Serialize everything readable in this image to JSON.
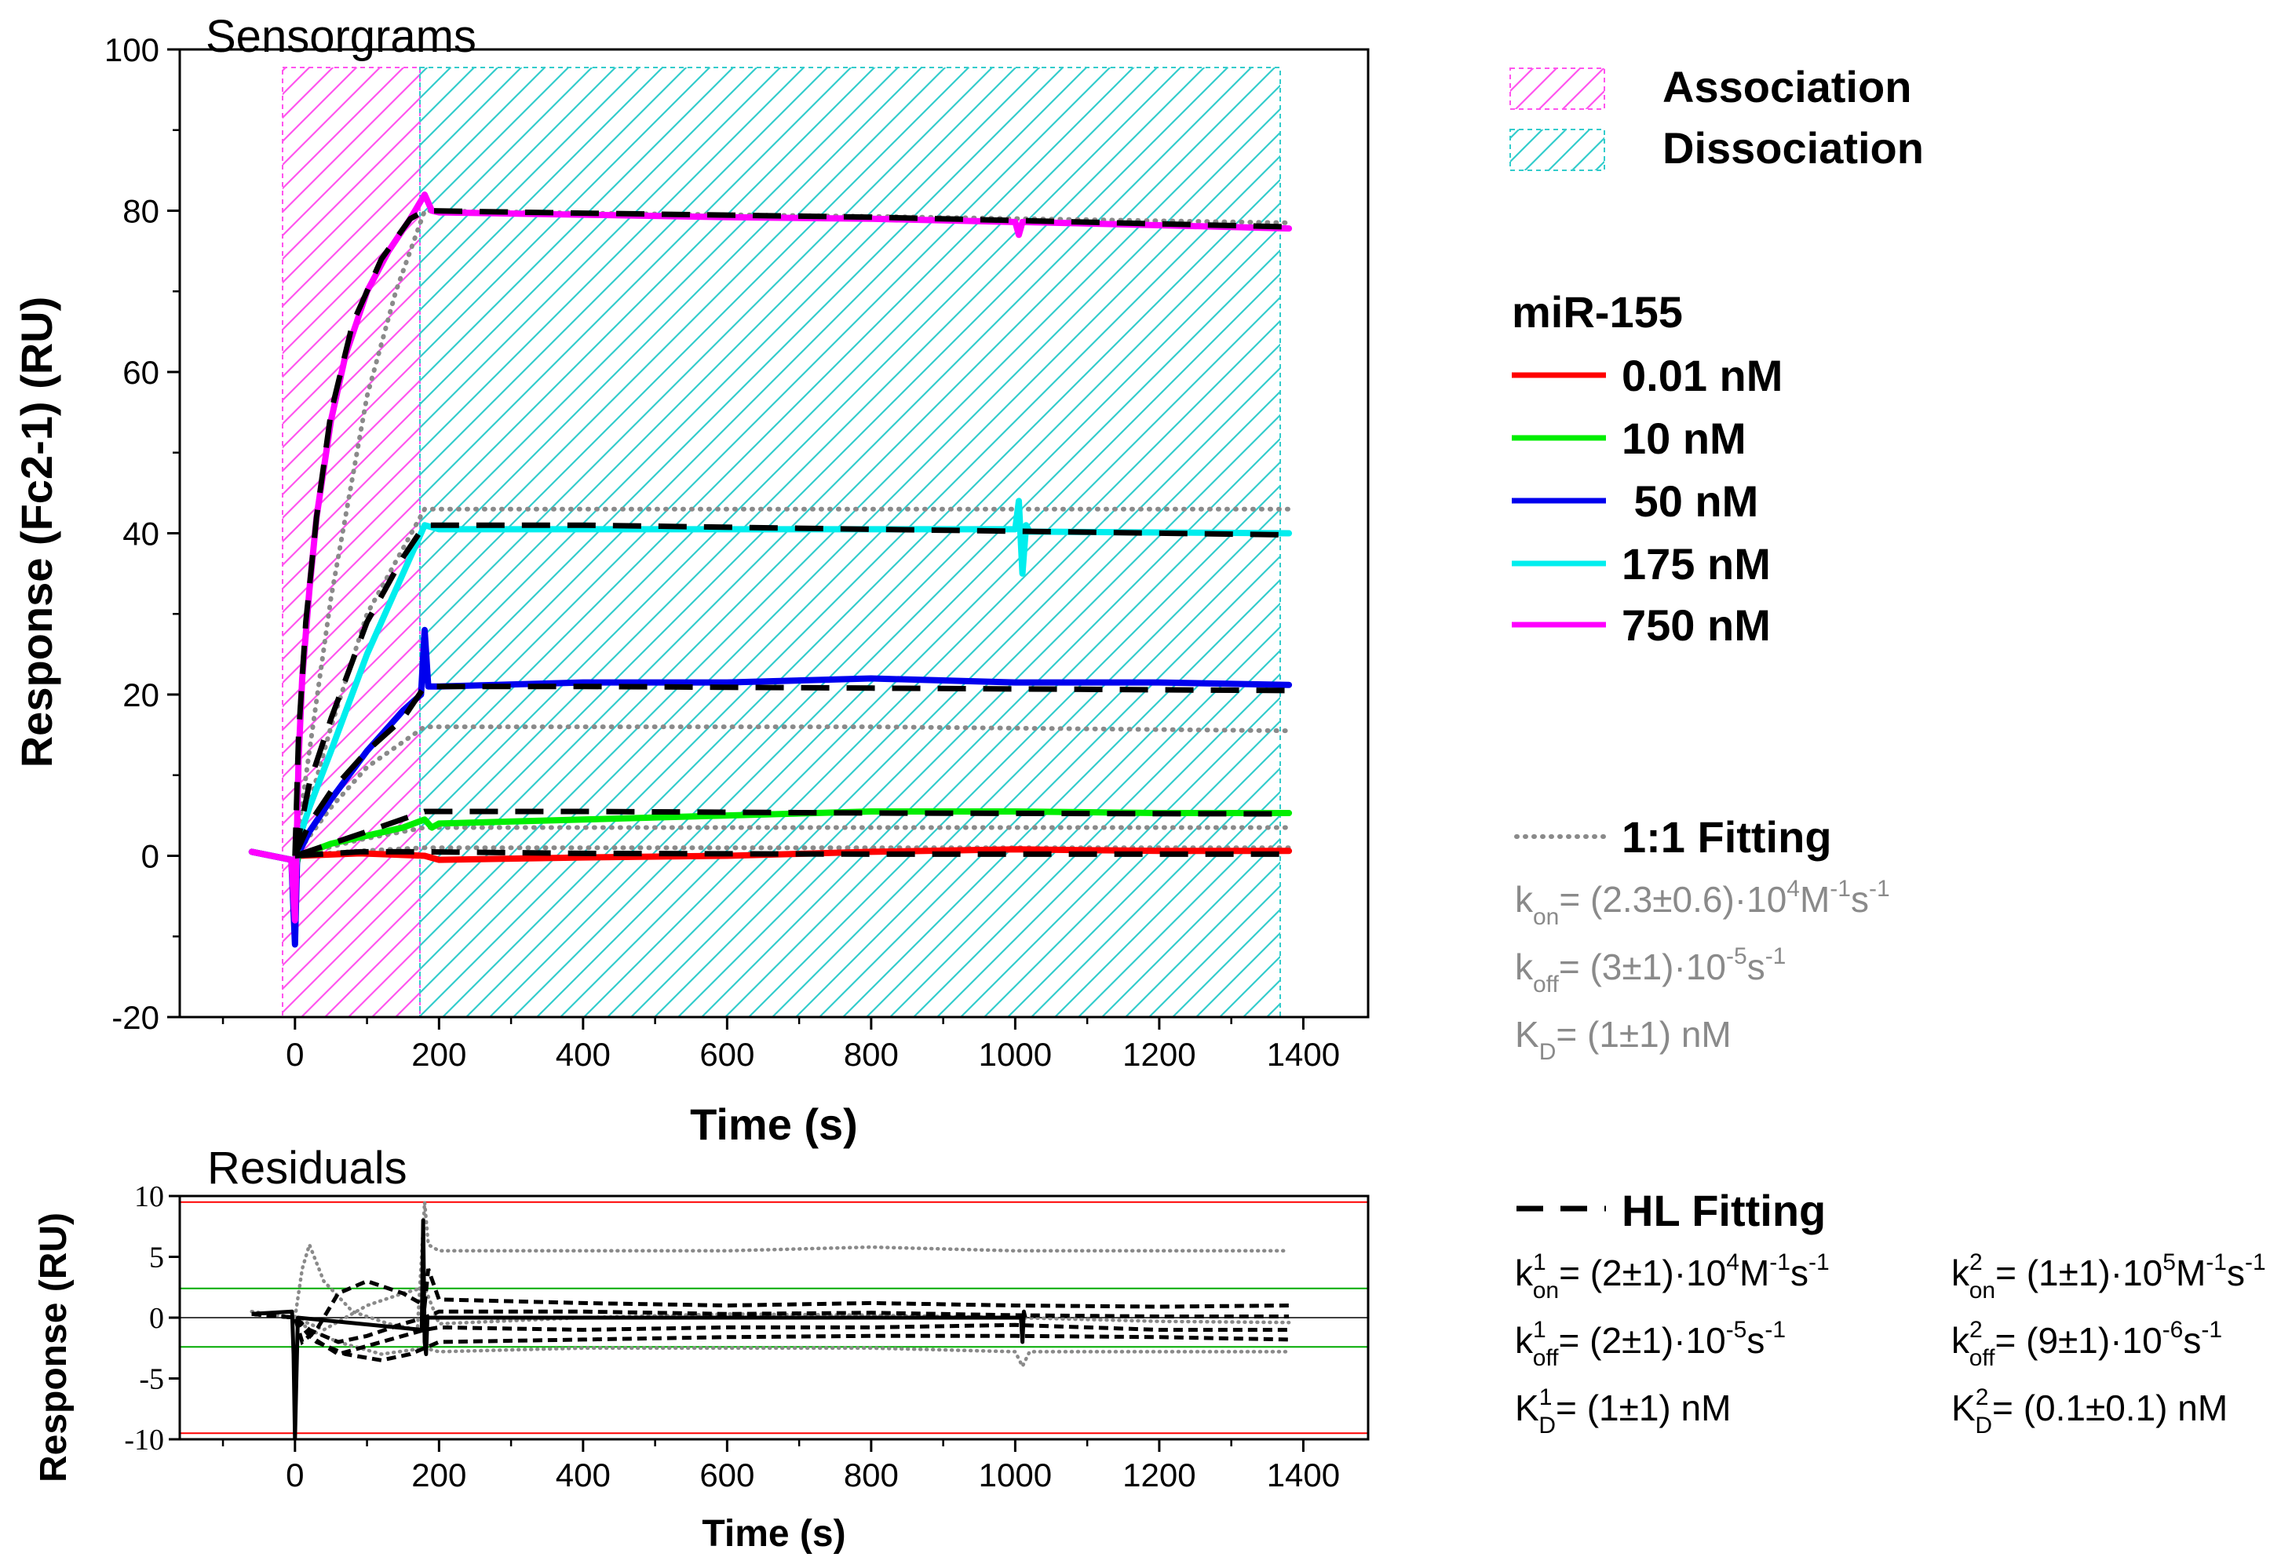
{
  "chart_data": [
    {
      "type": "line",
      "title": "Sensorgrams",
      "xlabel": "Time (s)",
      "ylabel": "Response (Fc2-1) (RU)",
      "xlim": [
        -160,
        1490
      ],
      "ylim": [
        -20,
        100
      ],
      "xticks": [
        "0",
        "200",
        "400",
        "600",
        "800",
        "1000",
        "1200",
        "1400"
      ],
      "yticks": [
        "-20",
        "0",
        "20",
        "40",
        "60",
        "80",
        "100"
      ],
      "regions": [
        {
          "name": "Association",
          "x": [
            -10,
            180
          ],
          "color": "#ff55ee"
        },
        {
          "name": "Dissociation",
          "x": [
            180,
            1380
          ],
          "color": "#33cccc"
        }
      ],
      "series": [
        {
          "name": "0.01 nM",
          "color": "#ff0000",
          "x": [
            -60,
            -5,
            0,
            5,
            90,
            180,
            200,
            400,
            600,
            800,
            1000,
            1200,
            1380
          ],
          "y": [
            0.5,
            -0.5,
            -1,
            0,
            0.3,
            0,
            -0.5,
            -0.2,
            0,
            0.5,
            0.8,
            0.6,
            0.6
          ]
        },
        {
          "name": "10 nM",
          "color": "#00ee00",
          "x": [
            -60,
            -5,
            0,
            5,
            50,
            100,
            150,
            180,
            190,
            200,
            400,
            600,
            800,
            1000,
            1200,
            1380
          ],
          "y": [
            0.5,
            -0.5,
            -2,
            0,
            1.5,
            2.5,
            3.5,
            4.5,
            3.5,
            4,
            4.5,
            5,
            5.5,
            5.5,
            5.3,
            5.3
          ]
        },
        {
          "name": "50 nM",
          "color": "#0000ee",
          "x": [
            -60,
            -5,
            0,
            3,
            20,
            50,
            100,
            150,
            175,
            180,
            185,
            200,
            400,
            600,
            800,
            1000,
            1200,
            1380
          ],
          "y": [
            0.5,
            -0.5,
            -11,
            0,
            3,
            7,
            13,
            18,
            20,
            28,
            21,
            21,
            21.5,
            21.5,
            22,
            21.5,
            21.5,
            21.2
          ]
        },
        {
          "name": "175 nM",
          "color": "#00eeee",
          "x": [
            -60,
            -5,
            0,
            5,
            20,
            50,
            100,
            150,
            180,
            200,
            400,
            600,
            800,
            1000,
            1005,
            1010,
            1015,
            1020,
            1200,
            1380
          ],
          "y": [
            0.5,
            -0.5,
            -3,
            2,
            6,
            13,
            25,
            35,
            41,
            40.5,
            40.5,
            40.5,
            40.5,
            40.5,
            44,
            35,
            41,
            40.2,
            40.1,
            40
          ]
        },
        {
          "name": "750 nM",
          "color": "#ff00ff",
          "x": [
            -60,
            -5,
            0,
            5,
            10,
            20,
            30,
            50,
            70,
            100,
            130,
            160,
            180,
            190,
            200,
            400,
            600,
            800,
            1000,
            1005,
            1010,
            1200,
            1380
          ],
          "y": [
            0.5,
            -0.5,
            -8,
            12,
            22,
            33,
            42,
            54,
            62,
            70,
            75,
            79,
            82,
            80,
            79.8,
            79.5,
            79.2,
            79,
            78.6,
            77,
            78.6,
            78.2,
            77.8
          ]
        }
      ],
      "fits": [
        {
          "name": "1:1 Fitting",
          "style": "dotted",
          "color": "#8a8a8a",
          "curves": [
            {
              "x": [
                0,
                90,
                180,
                400,
                800,
                1380
              ],
              "y": [
                0,
                0.6,
                1,
                1,
                1,
                1
              ]
            },
            {
              "x": [
                0,
                90,
                180,
                400,
                800,
                1380
              ],
              "y": [
                0,
                2,
                3.5,
                3.5,
                3.5,
                3.5
              ]
            },
            {
              "x": [
                0,
                50,
                100,
                180,
                400,
                800,
                1380
              ],
              "y": [
                0,
                6,
                11,
                16,
                16,
                16,
                15.5
              ]
            },
            {
              "x": [
                0,
                50,
                100,
                180,
                400,
                800,
                1380
              ],
              "y": [
                0,
                16,
                30,
                43,
                43,
                43,
                43
              ]
            },
            {
              "x": [
                0,
                20,
                50,
                100,
                140,
                180,
                400,
                800,
                1380
              ],
              "y": [
                0,
                13,
                32,
                57,
                70,
                80,
                79.7,
                79.3,
                78.5
              ]
            }
          ]
        },
        {
          "name": "HL Fitting",
          "style": "dashed",
          "color": "#000000",
          "curves": [
            {
              "x": [
                0,
                90,
                180,
                400,
                800,
                1380
              ],
              "y": [
                0,
                0.5,
                0.5,
                0.3,
                0.2,
                0.2
              ]
            },
            {
              "x": [
                0,
                50,
                100,
                180,
                400,
                800,
                1380
              ],
              "y": [
                0,
                1.5,
                3,
                5.5,
                5.5,
                5.3,
                5.2
              ]
            },
            {
              "x": [
                0,
                20,
                50,
                100,
                150,
                180,
                400,
                800,
                1380
              ],
              "y": [
                0,
                4,
                8,
                13,
                17,
                21,
                21,
                20.8,
                20.5
              ]
            },
            {
              "x": [
                0,
                20,
                50,
                100,
                150,
                180,
                400,
                800,
                1380
              ],
              "y": [
                0,
                9,
                17,
                29,
                37,
                41,
                41,
                40.5,
                39.8
              ]
            },
            {
              "x": [
                0,
                5,
                15,
                30,
                50,
                80,
                120,
                160,
                180,
                400,
                800,
                1380
              ],
              "y": [
                0,
                15,
                29,
                42,
                55,
                66,
                74,
                79,
                80,
                79.7,
                79.2,
                78
              ]
            }
          ]
        }
      ]
    },
    {
      "type": "line",
      "title": "Residuals",
      "xlabel": "Time (s)",
      "ylabel": "Response (RU)",
      "xlim": [
        -160,
        1490
      ],
      "ylim": [
        -10,
        10
      ],
      "xticks": [
        "0",
        "200",
        "400",
        "600",
        "800",
        "1000",
        "1200",
        "1400"
      ],
      "yticks": [
        "-10",
        "-5",
        "0",
        "5",
        "10"
      ],
      "reference_lines": [
        {
          "y": 9.5,
          "color": "#ff0000"
        },
        {
          "y": -9.5,
          "color": "#ff0000"
        },
        {
          "y": 2.4,
          "color": "#00aa00"
        },
        {
          "y": -2.4,
          "color": "#00aa00"
        },
        {
          "y": 0,
          "color": "#000000"
        }
      ],
      "series": [
        {
          "name": "1:1 residual high",
          "style": "dotted",
          "color": "#8a8a8a",
          "x": [
            -60,
            0,
            10,
            20,
            40,
            80,
            130,
            170,
            180,
            185,
            200,
            400,
            600,
            800,
            1000,
            1200,
            1380
          ],
          "y": [
            0.5,
            0,
            4,
            6,
            3,
            0.5,
            -0.5,
            -1,
            9.5,
            6,
            5.5,
            5.5,
            5.5,
            5.8,
            5.5,
            5.5,
            5.5
          ]
        },
        {
          "name": "1:1 residual low",
          "style": "dotted",
          "color": "#8a8a8a",
          "x": [
            -60,
            0,
            20,
            60,
            120,
            180,
            200,
            400,
            600,
            800,
            1000,
            1010,
            1020,
            1200,
            1380
          ],
          "y": [
            0.5,
            0,
            -1,
            -2,
            -3,
            -2.5,
            -2.8,
            -2.5,
            -2.5,
            -2.5,
            -2.8,
            -4,
            -2.8,
            -2.8,
            -2.8
          ]
        },
        {
          "name": "1:1 residual mid",
          "style": "dotted",
          "color": "#8a8a8a",
          "x": [
            -60,
            0,
            40,
            100,
            150,
            180,
            200,
            400,
            600,
            800,
            1000,
            1200,
            1380
          ],
          "y": [
            0.5,
            0,
            -1,
            1,
            2,
            2.5,
            -0.5,
            0,
            0.3,
            0.2,
            0,
            -0.3,
            -0.4
          ]
        },
        {
          "name": "HL residual 1",
          "style": "dashed",
          "color": "#000000",
          "x": [
            -60,
            0,
            10,
            30,
            60,
            100,
            150,
            180,
            185,
            200,
            400,
            600,
            800,
            1000,
            1200,
            1380
          ],
          "y": [
            0.3,
            0,
            -2,
            -1,
            2,
            3,
            2,
            1,
            4,
            1.5,
            1.2,
            1,
            1.2,
            1,
            0.9,
            1
          ]
        },
        {
          "name": "HL residual 2",
          "style": "dashed",
          "color": "#000000",
          "x": [
            -60,
            0,
            20,
            60,
            100,
            150,
            180,
            200,
            400,
            600,
            800,
            1000,
            1200,
            1380
          ],
          "y": [
            0.3,
            0,
            -1,
            -2,
            -1.5,
            -0.5,
            0,
            0.5,
            0.5,
            0.3,
            0.4,
            0.2,
            0.1,
            0.1
          ]
        },
        {
          "name": "HL residual 3",
          "style": "dashed",
          "color": "#000000",
          "x": [
            -60,
            0,
            20,
            60,
            120,
            180,
            200,
            400,
            600,
            800,
            1000,
            1200,
            1380
          ],
          "y": [
            0.3,
            0,
            -1.5,
            -3,
            -2,
            -1,
            -0.8,
            -1,
            -0.8,
            -0.8,
            -0.6,
            -1,
            -1
          ]
        },
        {
          "name": "HL residual 4",
          "style": "dashed",
          "color": "#000000",
          "x": [
            -60,
            0,
            30,
            70,
            120,
            160,
            180,
            200,
            400,
            600,
            800,
            1000,
            1200,
            1380
          ],
          "y": [
            0.3,
            0,
            -2,
            -3,
            -3.5,
            -3,
            -2.5,
            -2,
            -1.8,
            -1.6,
            -1.5,
            -1.5,
            -1.6,
            -1.8
          ]
        },
        {
          "name": "HL spikes",
          "style": "solid",
          "color": "#000000",
          "x": [
            -60,
            -4,
            -2,
            0,
            2,
            4,
            176,
            178,
            180,
            182,
            184,
            1008,
            1010,
            1012,
            1014
          ],
          "y": [
            0.3,
            0.5,
            -3,
            -10,
            -5,
            0,
            -1,
            8,
            -2,
            -3,
            0,
            0,
            -2,
            0.5,
            0
          ]
        }
      ]
    }
  ],
  "legend_regions": [
    {
      "label": "Association",
      "color": "#ff55ee"
    },
    {
      "label": "Dissociation",
      "color": "#33cccc"
    }
  ],
  "legend_series_title": "miR-155",
  "legend_series": [
    {
      "label": "0.01 nM",
      "color": "#ff0000"
    },
    {
      "label": "10 nM",
      "color": "#00ee00"
    },
    {
      "label": " 50 nM",
      "color": "#0000ee"
    },
    {
      "label": "175 nM",
      "color": "#00eeee"
    },
    {
      "label": "750 nM",
      "color": "#ff00ff"
    }
  ],
  "fit11": {
    "label": "1:1 Fitting",
    "kon": {
      "sym": "k",
      "sub": "on",
      "pre": "= (2.3±0.6)·10",
      "exp": "4",
      "unit1": "M",
      "unit1exp": "-1",
      "unit2": "s",
      "unit2exp": "-1"
    },
    "koff": {
      "sym": "k",
      "sub": "off",
      "pre": "= (3±1)·10",
      "exp": "-5",
      "unit2": "s",
      "unit2exp": "-1"
    },
    "kd": {
      "sym": "K",
      "sub": "D",
      "pre": "= (1±1) nM"
    }
  },
  "fitHL": {
    "label": "HL Fitting",
    "kon1": {
      "sym": "k",
      "sup": "1",
      "sub": "on",
      "pre": "= (2±1)·10",
      "exp": "4",
      "unit1": "M",
      "unit1exp": "-1",
      "unit2": "s",
      "unit2exp": "-1"
    },
    "koff1": {
      "sym": "k",
      "sup": "1",
      "sub": "off",
      "pre": "= (2±1)·10",
      "exp": "-5",
      "unit2": "s",
      "unit2exp": "-1"
    },
    "kd1": {
      "sym": "K",
      "sup": "1",
      "sub": "D",
      "pre": "= (1±1) nM"
    },
    "kon2": {
      "sym": "k",
      "sup": "2",
      "sub": "on",
      "pre": "= (1±1)·10",
      "exp": "5",
      "unit1": "M",
      "unit1exp": "-1",
      "unit2": "s",
      "unit2exp": "-1"
    },
    "koff2": {
      "sym": "k",
      "sup": "2",
      "sub": "off",
      "pre": "= (9±1)·10",
      "exp": "-6",
      "unit2": "s",
      "unit2exp": "-1"
    },
    "kd2": {
      "sym": "K",
      "sup": "2",
      "sub": "D",
      "pre": "= (0.1±0.1) nM"
    }
  }
}
